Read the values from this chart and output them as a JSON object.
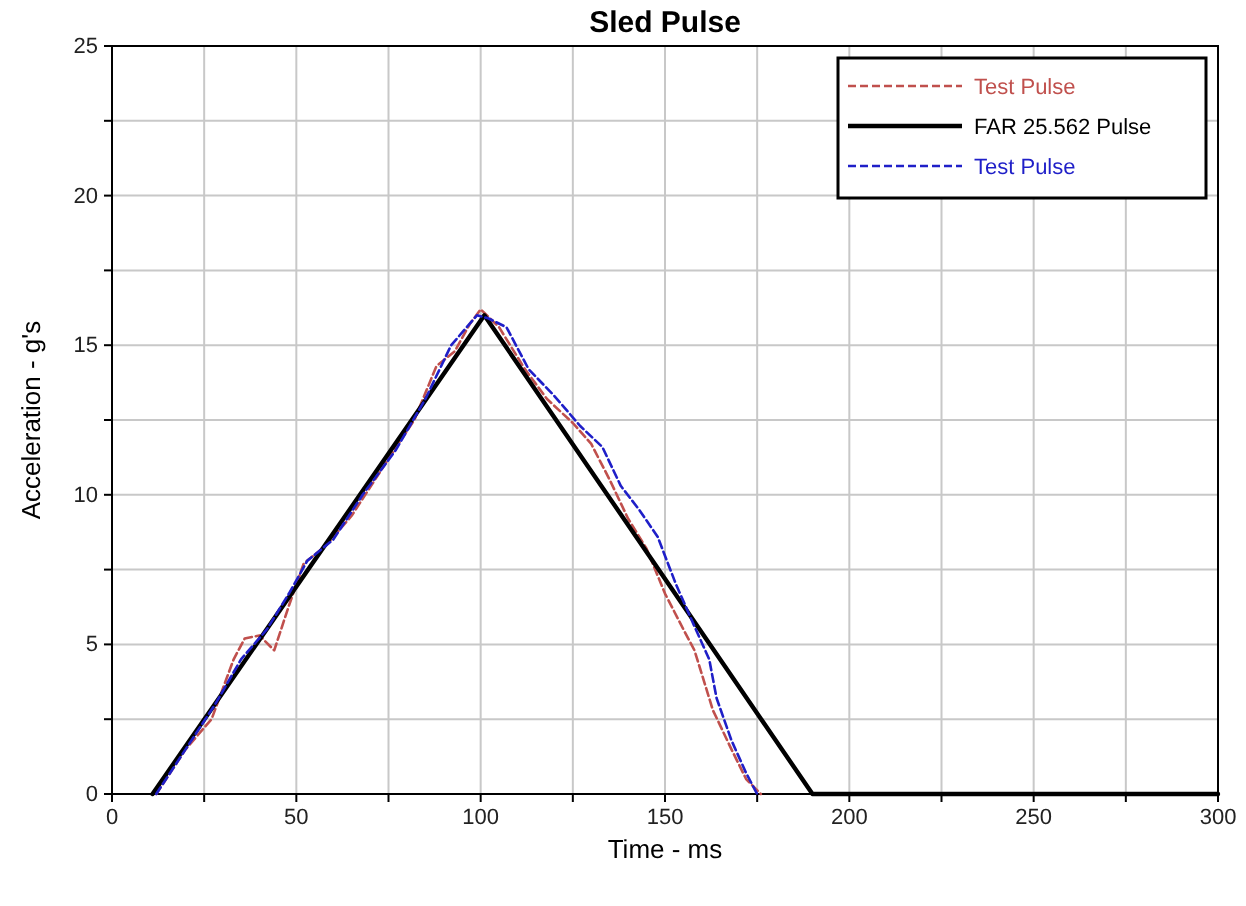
{
  "chart_data": {
    "type": "line",
    "title": "Sled Pulse",
    "xlabel": "Time - ms",
    "ylabel": "Acceleration - g's",
    "xlim": [
      0,
      300
    ],
    "ylim": [
      0,
      25
    ],
    "xticks": [
      0,
      {
        "value": 25,
        "label": null
      },
      50,
      {
        "value": 75,
        "label": null
      },
      100,
      {
        "value": 125,
        "label": null
      },
      150,
      {
        "value": 175,
        "label": null
      },
      200,
      {
        "value": 225,
        "label": null
      },
      250,
      {
        "value": 275,
        "label": null
      },
      300
    ],
    "yticks": [
      0,
      {
        "value": 2.5,
        "label": null
      },
      5,
      {
        "value": 7.5,
        "label": null
      },
      10,
      {
        "value": 12.5,
        "label": null
      },
      15,
      {
        "value": 17.5,
        "label": null
      },
      20,
      {
        "value": 22.5,
        "label": null
      },
      25
    ],
    "grid": true,
    "legend": "top right",
    "series": [
      {
        "name": "Test Pulse",
        "color": "#c0504d",
        "line_style": "dashed",
        "x": [
          12,
          20,
          27,
          33,
          36,
          40,
          44,
          48,
          52,
          58,
          65,
          75,
          82,
          88,
          93,
          97,
          100,
          105,
          112,
          118,
          125,
          130,
          135,
          140,
          145,
          150,
          155,
          158,
          163,
          168,
          172,
          176
        ],
        "values": [
          0,
          1.5,
          2.5,
          4.5,
          5.2,
          5.3,
          4.8,
          6.3,
          7.7,
          8.3,
          9.3,
          11.2,
          12.5,
          14.3,
          14.8,
          15.7,
          16.2,
          15.6,
          14.2,
          13.2,
          12.4,
          11.7,
          10.5,
          9.2,
          8.2,
          6.7,
          5.5,
          4.8,
          2.8,
          1.5,
          0.5,
          0
        ]
      },
      {
        "name": "FAR 25.562 Pulse",
        "color": "#000000",
        "line_style": "solid",
        "x": [
          11,
          101,
          190,
          300
        ],
        "values": [
          0,
          16,
          0,
          0
        ]
      },
      {
        "name": "Test Pulse",
        "color": "#1f1fc8",
        "line_style": "dashed",
        "x": [
          12,
          20,
          28,
          35,
          42,
          48,
          53,
          60,
          68,
          77,
          85,
          92,
          99,
          102,
          107,
          113,
          120,
          127,
          133,
          138,
          143,
          148,
          153,
          158,
          162,
          164,
          168,
          172,
          175
        ],
        "values": [
          0,
          1.5,
          3,
          4.5,
          5.5,
          6.7,
          7.8,
          8.5,
          10,
          11.5,
          13.2,
          15,
          16,
          15.9,
          15.6,
          14.2,
          13.3,
          12.3,
          11.6,
          10.3,
          9.5,
          8.6,
          7,
          5.6,
          4.5,
          3.2,
          1.8,
          0.7,
          0
        ]
      }
    ]
  }
}
